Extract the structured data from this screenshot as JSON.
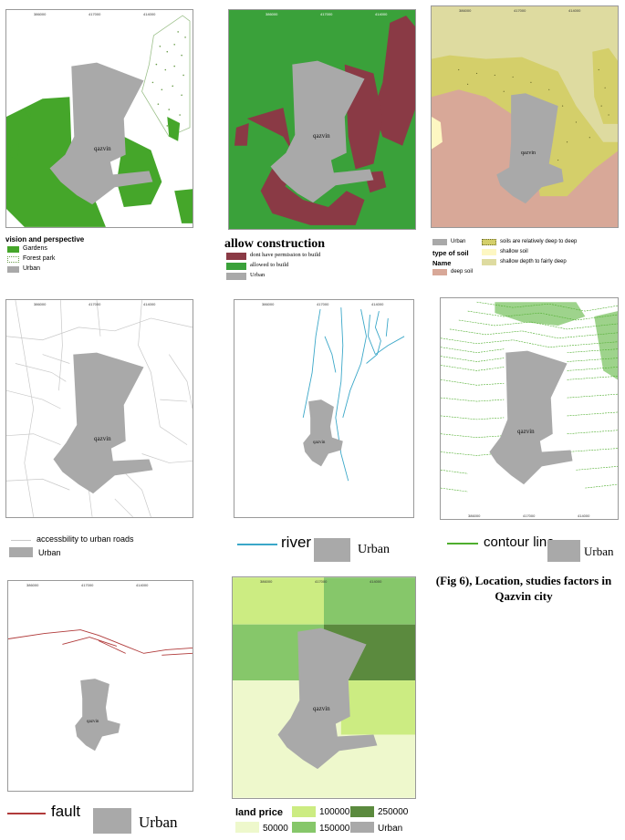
{
  "colors": {
    "urban": "#a9a9a9",
    "gardens": "#45a62a",
    "forest_park_dots": "#6a9c4a",
    "no_permission": "#8a3a45",
    "allowed": "#3aa13a",
    "deep_soil": "#d8a898",
    "shallow_soil": "#fdf7c2",
    "shallow_to_fairly_deep": "#dedba0",
    "relatively_deep": "#d4cf6a",
    "road": "#c8c8c8",
    "river": "#3aa7c8",
    "contour": "#4fae2e",
    "fault": "#b03a3a",
    "price_50000": "#eef8cc",
    "price_100000": "#ccec82",
    "price_150000": "#86c76a",
    "price_250000": "#5b8a3e"
  },
  "city_name": "qazvin",
  "panels": {
    "vision": {
      "legend_title": "vision and perspective",
      "items": [
        "Gardens",
        "Forest park",
        "Urban"
      ]
    },
    "construction": {
      "legend_title": "allow construction",
      "items": [
        "dont have permission to build",
        "allowed to build",
        "Urban"
      ]
    },
    "soil": {
      "urban_label": "Urban",
      "type_label": "type of soil",
      "name_label": "Name",
      "items": [
        "soils are relatively deep to deep",
        "shallow soil",
        "shallow depth to fairly deep",
        "deep soil"
      ]
    },
    "roads": {
      "items": [
        "accessbility to urban roads",
        "Urban"
      ]
    },
    "river": {
      "items": [
        "river",
        "Urban"
      ]
    },
    "contour": {
      "items": [
        "contour line",
        "Urban"
      ]
    },
    "fault": {
      "items": [
        "fault",
        "Urban"
      ]
    },
    "land_price": {
      "legend_title": "land price",
      "items": [
        "100000",
        "250000",
        "50000",
        "150000",
        "Urban"
      ]
    }
  },
  "caption": {
    "line1": "(Fig 6), Location, studies factors in",
    "line2": "Qazvin city"
  }
}
